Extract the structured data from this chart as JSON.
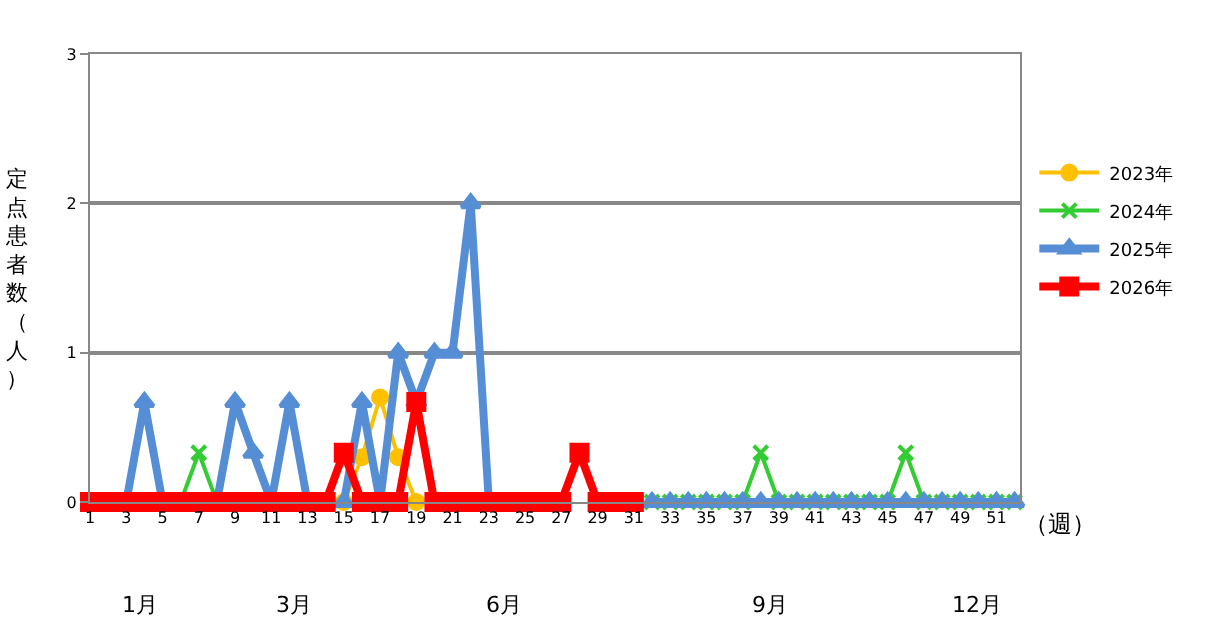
{
  "chart_data": {
    "type": "line",
    "xlabel": "（週）",
    "ylabel": "定点患者数（人）",
    "x": [
      1,
      2,
      3,
      4,
      5,
      6,
      7,
      8,
      9,
      10,
      11,
      12,
      13,
      14,
      15,
      16,
      17,
      18,
      19,
      20,
      21,
      22,
      23,
      24,
      25,
      26,
      27,
      28,
      29,
      30,
      31,
      32,
      33,
      34,
      35,
      36,
      37,
      38,
      39,
      40,
      41,
      42,
      43,
      44,
      45,
      46,
      47,
      48,
      49,
      50,
      51,
      52
    ],
    "xlim": [
      1,
      52.3
    ],
    "xticks": [
      1,
      3,
      5,
      7,
      9,
      11,
      13,
      15,
      17,
      19,
      21,
      23,
      25,
      27,
      29,
      31,
      33,
      35,
      37,
      39,
      41,
      43,
      45,
      47,
      49,
      51
    ],
    "ylim": [
      0,
      3
    ],
    "yticks": [
      0,
      1,
      2,
      3
    ],
    "grid": "y",
    "legend": "right",
    "series": [
      {
        "name": "2023年",
        "color": "#ffc000",
        "marker": "circle",
        "values": [
          null,
          null,
          null,
          null,
          null,
          null,
          null,
          null,
          null,
          null,
          null,
          null,
          null,
          null,
          0,
          0.3,
          0.7,
          0.3,
          0,
          null,
          null,
          null,
          null,
          null,
          null,
          null,
          null,
          null,
          null,
          null,
          null,
          null,
          null,
          null,
          null,
          null,
          null,
          null,
          null,
          null,
          null,
          null,
          null,
          null,
          null,
          null,
          null,
          null,
          null,
          null,
          null,
          null
        ]
      },
      {
        "name": "2024年",
        "color": "#33cc33",
        "marker": "cross",
        "values": [
          null,
          null,
          null,
          null,
          null,
          0,
          0.33,
          0,
          null,
          null,
          null,
          null,
          null,
          null,
          null,
          null,
          null,
          null,
          null,
          null,
          null,
          null,
          null,
          null,
          null,
          null,
          null,
          null,
          null,
          null,
          null,
          0,
          0,
          0,
          0,
          0,
          0,
          0.33,
          0,
          0,
          0,
          0,
          0,
          0,
          0,
          0.33,
          0,
          0,
          0,
          0,
          0,
          0
        ]
      },
      {
        "name": "2025年",
        "color": "#558ed5",
        "marker": "triangle",
        "values": [
          null,
          null,
          0,
          0.67,
          0,
          null,
          null,
          0,
          0.67,
          0.33,
          0,
          0.67,
          0,
          null,
          0,
          0.67,
          0,
          1,
          0.67,
          1,
          1,
          2,
          0,
          null,
          null,
          null,
          null,
          null,
          null,
          null,
          null,
          0,
          0,
          0,
          0,
          0,
          0,
          0,
          0,
          0,
          0,
          0,
          0,
          0,
          0,
          0,
          0,
          0,
          0,
          0,
          0,
          0
        ]
      },
      {
        "name": "2026年",
        "color": "#ff0000",
        "marker": "square",
        "values": [
          0,
          0,
          0,
          0,
          0,
          0,
          0,
          0,
          0,
          0,
          0,
          0,
          0,
          0,
          0.33,
          0,
          0,
          0,
          0.67,
          0,
          0,
          0,
          0,
          0,
          0,
          0,
          0,
          0.33,
          0,
          0,
          0,
          null,
          null,
          null,
          null,
          null,
          null,
          null,
          null,
          null,
          null,
          null,
          null,
          null,
          null,
          null,
          null,
          null,
          null,
          null,
          null,
          null
        ]
      }
    ],
    "annotations": [
      "1月",
      "3月",
      "6月",
      "9月",
      "12月"
    ]
  }
}
